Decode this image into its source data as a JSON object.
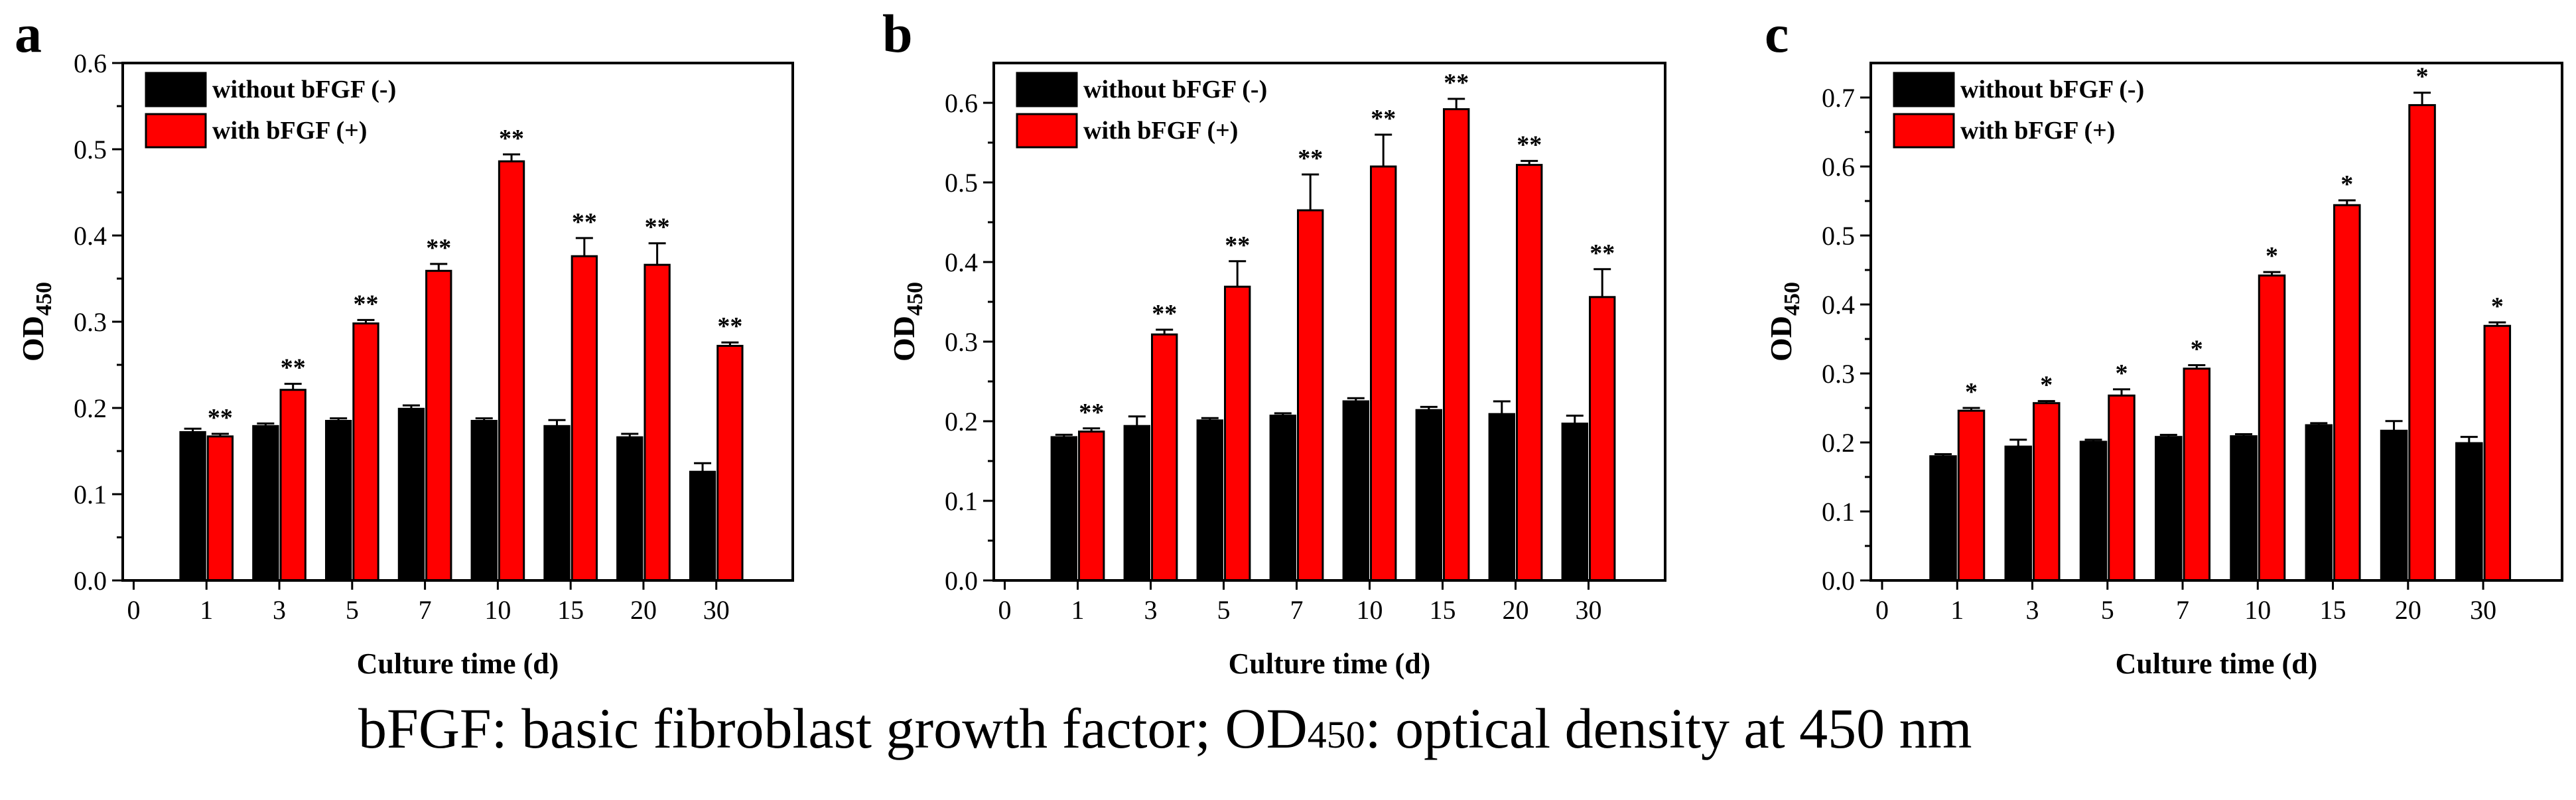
{
  "caption": {
    "before": "bFGF: basic fibroblast growth factor; OD",
    "sub": "450",
    "after": ": optical density at 450 nm"
  },
  "colors": {
    "without": "#000000",
    "with": "#ff0000"
  },
  "chart_data": [
    {
      "type": "bar",
      "panel_label": "a",
      "xlabel": "Culture time (d)",
      "ylabel": "OD",
      "ylabel_sub": "450",
      "ylim": [
        0,
        0.6
      ],
      "yticks": [
        "0.0",
        "0.1",
        "0.2",
        "0.3",
        "0.4",
        "0.5",
        "0.6"
      ],
      "x_zero_label": "0",
      "categories": [
        "1",
        "3",
        "5",
        "7",
        "10",
        "15",
        "20",
        "30"
      ],
      "legend_position": "top-left",
      "series": [
        {
          "name": "without bFGF (-)",
          "color": "#000000",
          "values": [
            0.172,
            0.179,
            0.185,
            0.199,
            0.185,
            0.179,
            0.166,
            0.126
          ],
          "errors": [
            0.004,
            0.003,
            0.003,
            0.004,
            0.003,
            0.007,
            0.004,
            0.01
          ]
        },
        {
          "name": "with bFGF (+)",
          "color": "#ff0000",
          "values": [
            0.167,
            0.221,
            0.298,
            0.359,
            0.486,
            0.376,
            0.366,
            0.272
          ],
          "errors": [
            0.003,
            0.007,
            0.004,
            0.008,
            0.008,
            0.021,
            0.025,
            0.004
          ]
        }
      ],
      "significance": [
        "**",
        "**",
        "**",
        "**",
        "**",
        "**",
        "**",
        "**"
      ]
    },
    {
      "type": "bar",
      "panel_label": "b",
      "xlabel": "Culture time (d)",
      "ylabel": "OD",
      "ylabel_sub": "450",
      "ylim": [
        0,
        0.65
      ],
      "yticks": [
        "0.0",
        "0.1",
        "0.2",
        "0.3",
        "0.4",
        "0.5",
        "0.6"
      ],
      "x_zero_label": "0",
      "categories": [
        "1",
        "3",
        "5",
        "7",
        "10",
        "15",
        "20",
        "30"
      ],
      "legend_position": "top-left",
      "series": [
        {
          "name": "without bFGF (-)",
          "color": "#000000",
          "values": [
            0.18,
            0.194,
            0.201,
            0.207,
            0.225,
            0.214,
            0.209,
            0.197
          ],
          "errors": [
            0.003,
            0.012,
            0.003,
            0.003,
            0.004,
            0.004,
            0.016,
            0.01
          ]
        },
        {
          "name": "with bFGF (+)",
          "color": "#ff0000",
          "values": [
            0.187,
            0.309,
            0.369,
            0.465,
            0.52,
            0.592,
            0.522,
            0.356
          ],
          "errors": [
            0.004,
            0.006,
            0.032,
            0.045,
            0.04,
            0.013,
            0.005,
            0.035
          ]
        }
      ],
      "significance": [
        "**",
        "**",
        "**",
        "**",
        "**",
        "**",
        "**",
        "**"
      ]
    },
    {
      "type": "bar",
      "panel_label": "c",
      "xlabel": "Culture time (d)",
      "ylabel": "OD",
      "ylabel_sub": "450",
      "ylim": [
        0,
        0.75
      ],
      "yticks": [
        "0.0",
        "0.1",
        "0.2",
        "0.3",
        "0.4",
        "0.5",
        "0.6",
        "0.7"
      ],
      "x_zero_label": "0",
      "categories": [
        "1",
        "3",
        "5",
        "7",
        "10",
        "15",
        "20",
        "30"
      ],
      "legend_position": "top-left",
      "series": [
        {
          "name": "without bFGF (-)",
          "color": "#000000",
          "values": [
            0.18,
            0.194,
            0.201,
            0.208,
            0.209,
            0.225,
            0.217,
            0.199
          ],
          "errors": [
            0.003,
            0.01,
            0.003,
            0.003,
            0.003,
            0.003,
            0.014,
            0.009
          ]
        },
        {
          "name": "with bFGF (+)",
          "color": "#ff0000",
          "values": [
            0.246,
            0.257,
            0.268,
            0.307,
            0.442,
            0.544,
            0.689,
            0.369
          ],
          "errors": [
            0.004,
            0.003,
            0.009,
            0.005,
            0.005,
            0.007,
            0.018,
            0.005
          ]
        }
      ],
      "significance": [
        "*",
        "*",
        "*",
        "*",
        "*",
        "*",
        "*",
        "*"
      ]
    }
  ]
}
